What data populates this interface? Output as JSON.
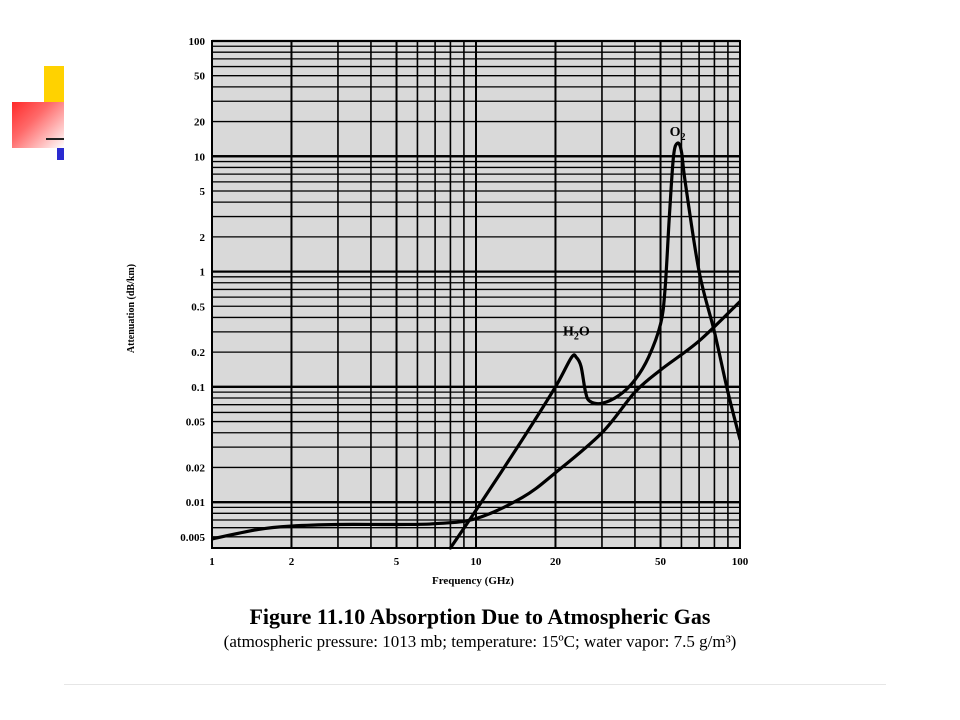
{
  "figure": {
    "title": "Figure 11.10  Absorption Due to Atmospheric Gas",
    "caption": "(atmospheric pressure: 1013 mb; temperature: 15ºC; water vapor: 7.5 g/m³)"
  },
  "chart_data": {
    "type": "line",
    "xlabel": "Frequency (GHz)",
    "ylabel": "Attenuation (dB/km)",
    "x_scale": "log",
    "y_scale": "log",
    "xlim": [
      1,
      100
    ],
    "ylim": [
      0.004,
      100
    ],
    "grid": true,
    "x_ticks": [
      1,
      2,
      5,
      10,
      20,
      50,
      100
    ],
    "x_tick_labels": [
      "1",
      "2",
      "5",
      "10",
      "20",
      "50",
      "100"
    ],
    "y_ticks": [
      0.005,
      0.01,
      0.02,
      0.05,
      0.1,
      0.2,
      0.5,
      1,
      2,
      5,
      10,
      20,
      50,
      100
    ],
    "y_tick_labels": [
      "0.005",
      "0.01",
      "0.02",
      "0.05",
      "0.1",
      "0.2",
      "0.5",
      "1",
      "2",
      "5",
      "10",
      "20",
      "50",
      "100"
    ],
    "colors": {
      "plot_background": "#d9d9d9",
      "grid": "#000000",
      "line": "#000000"
    },
    "series": [
      {
        "name": "",
        "points": [
          [
            8,
            0.004
          ],
          [
            10,
            0.0085
          ],
          [
            15,
            0.035
          ],
          [
            20,
            0.1
          ],
          [
            23,
            0.18
          ],
          [
            24,
            0.18
          ],
          [
            25,
            0.15
          ],
          [
            26,
            0.09
          ],
          [
            27,
            0.075
          ],
          [
            30,
            0.072
          ],
          [
            35,
            0.085
          ],
          [
            40,
            0.115
          ],
          [
            45,
            0.18
          ],
          [
            50,
            0.35
          ],
          [
            52,
            0.7
          ],
          [
            54,
            3
          ],
          [
            56,
            10
          ],
          [
            58,
            13
          ],
          [
            60,
            11
          ],
          [
            62,
            6
          ],
          [
            70,
            1
          ],
          [
            80,
            0.3
          ],
          [
            90,
            0.09
          ],
          [
            100,
            0.035
          ]
        ]
      },
      {
        "name": "",
        "points": [
          [
            1,
            0.0048
          ],
          [
            1.5,
            0.0058
          ],
          [
            2,
            0.0062
          ],
          [
            3,
            0.0064
          ],
          [
            5,
            0.0064
          ],
          [
            7,
            0.0065
          ],
          [
            10,
            0.0072
          ],
          [
            15,
            0.011
          ],
          [
            20,
            0.018
          ],
          [
            30,
            0.04
          ],
          [
            40,
            0.09
          ],
          [
            50,
            0.14
          ],
          [
            70,
            0.25
          ],
          [
            100,
            0.55
          ]
        ]
      }
    ],
    "annotations": [
      {
        "base": "H",
        "sub": "2",
        "rest": "O",
        "x": 24,
        "y": 0.28
      },
      {
        "base": "O",
        "sub": "2",
        "rest": "",
        "x": 58,
        "y": 15
      }
    ]
  }
}
